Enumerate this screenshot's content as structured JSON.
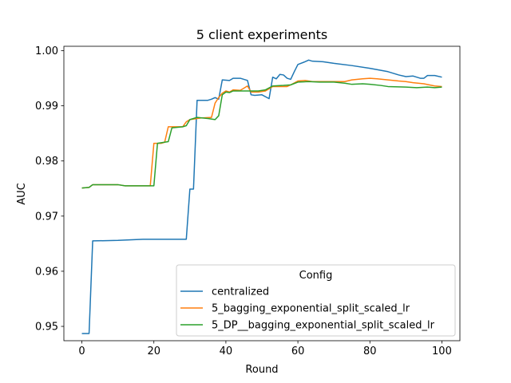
{
  "chart_data": {
    "type": "line",
    "title": "5 client experiments",
    "xlabel": "Round",
    "ylabel": "AUC",
    "xlim": [
      -5,
      105
    ],
    "ylim": [
      0.9474,
      1.0008
    ],
    "x_ticks": [
      0,
      20,
      40,
      60,
      80,
      100
    ],
    "y_ticks": [
      0.95,
      0.96,
      0.97,
      0.98,
      0.99,
      1.0
    ],
    "y_tick_labels": [
      "0.95",
      "0.96",
      "0.97",
      "0.98",
      "0.99",
      "1.00"
    ],
    "grid": false,
    "legend": {
      "title": "Config",
      "placement": "lower-right"
    },
    "series": [
      {
        "name": "centralized",
        "color": "#1f77b4",
        "points": [
          [
            0,
            0.9487
          ],
          [
            2,
            0.9487
          ],
          [
            3,
            0.9655
          ],
          [
            10,
            0.9656
          ],
          [
            17,
            0.9658
          ],
          [
            25,
            0.9658
          ],
          [
            29,
            0.9658
          ],
          [
            30,
            0.9749
          ],
          [
            31,
            0.9749
          ],
          [
            32,
            0.991
          ],
          [
            35,
            0.991
          ],
          [
            36,
            0.9912
          ],
          [
            37,
            0.9915
          ],
          [
            38,
            0.9912
          ],
          [
            39,
            0.9947
          ],
          [
            41,
            0.9946
          ],
          [
            42,
            0.995
          ],
          [
            44,
            0.995
          ],
          [
            46,
            0.9946
          ],
          [
            47,
            0.992
          ],
          [
            48,
            0.9919
          ],
          [
            50,
            0.992
          ],
          [
            52,
            0.9913
          ],
          [
            53,
            0.9952
          ],
          [
            54,
            0.9949
          ],
          [
            55,
            0.9957
          ],
          [
            56,
            0.9956
          ],
          [
            57,
            0.995
          ],
          [
            58,
            0.9948
          ],
          [
            59,
            0.9962
          ],
          [
            60,
            0.9975
          ],
          [
            62,
            0.998
          ],
          [
            63,
            0.9983
          ],
          [
            64,
            0.9981
          ],
          [
            67,
            0.998
          ],
          [
            70,
            0.9977
          ],
          [
            75,
            0.9973
          ],
          [
            80,
            0.9968
          ],
          [
            85,
            0.9962
          ],
          [
            88,
            0.9956
          ],
          [
            90,
            0.9953
          ],
          [
            92,
            0.9954
          ],
          [
            94,
            0.995
          ],
          [
            95,
            0.995
          ],
          [
            96,
            0.9955
          ],
          [
            98,
            0.9955
          ],
          [
            100,
            0.9952
          ]
        ]
      },
      {
        "name": "5_bagging_exponential_split_scaled_lr",
        "color": "#ff7f0e",
        "points": [
          [
            0,
            0.9751
          ],
          [
            2,
            0.9752
          ],
          [
            3,
            0.9757
          ],
          [
            10,
            0.9757
          ],
          [
            12,
            0.9755
          ],
          [
            19,
            0.9755
          ],
          [
            20,
            0.9832
          ],
          [
            22,
            0.9832
          ],
          [
            23,
            0.9834
          ],
          [
            24,
            0.9862
          ],
          [
            25,
            0.9862
          ],
          [
            26,
            0.9862
          ],
          [
            28,
            0.9862
          ],
          [
            29,
            0.9871
          ],
          [
            30,
            0.9875
          ],
          [
            33,
            0.9878
          ],
          [
            36,
            0.9879
          ],
          [
            37,
            0.9905
          ],
          [
            38,
            0.9915
          ],
          [
            39,
            0.9923
          ],
          [
            40,
            0.9927
          ],
          [
            41,
            0.9925
          ],
          [
            42,
            0.9929
          ],
          [
            44,
            0.9928
          ],
          [
            46,
            0.9936
          ],
          [
            47,
            0.9925
          ],
          [
            49,
            0.9925
          ],
          [
            51,
            0.9927
          ],
          [
            53,
            0.9935
          ],
          [
            57,
            0.9935
          ],
          [
            58,
            0.9938
          ],
          [
            60,
            0.9945
          ],
          [
            62,
            0.9946
          ],
          [
            64,
            0.9944
          ],
          [
            70,
            0.9944
          ],
          [
            73,
            0.9944
          ],
          [
            75,
            0.9947
          ],
          [
            78,
            0.9949
          ],
          [
            80,
            0.995
          ],
          [
            82,
            0.9949
          ],
          [
            85,
            0.9947
          ],
          [
            88,
            0.9945
          ],
          [
            90,
            0.9944
          ],
          [
            92,
            0.9942
          ],
          [
            95,
            0.994
          ],
          [
            98,
            0.9936
          ],
          [
            100,
            0.9935
          ]
        ]
      },
      {
        "name": "5_DP__bagging_exponential_split_scaled_lr",
        "color": "#2ca02c",
        "points": [
          [
            0,
            0.9751
          ],
          [
            2,
            0.9752
          ],
          [
            3,
            0.9757
          ],
          [
            10,
            0.9757
          ],
          [
            12,
            0.9755
          ],
          [
            19,
            0.9755
          ],
          [
            20,
            0.9755
          ],
          [
            21,
            0.9832
          ],
          [
            24,
            0.9835
          ],
          [
            25,
            0.986
          ],
          [
            28,
            0.9862
          ],
          [
            29,
            0.9864
          ],
          [
            30,
            0.9875
          ],
          [
            32,
            0.9879
          ],
          [
            35,
            0.9877
          ],
          [
            37,
            0.9875
          ],
          [
            38,
            0.9882
          ],
          [
            39,
            0.992
          ],
          [
            40,
            0.9925
          ],
          [
            41,
            0.9924
          ],
          [
            42,
            0.9927
          ],
          [
            45,
            0.9927
          ],
          [
            47,
            0.9927
          ],
          [
            49,
            0.9927
          ],
          [
            51,
            0.9929
          ],
          [
            53,
            0.9936
          ],
          [
            56,
            0.9937
          ],
          [
            58,
            0.9938
          ],
          [
            60,
            0.9943
          ],
          [
            63,
            0.9944
          ],
          [
            66,
            0.9943
          ],
          [
            70,
            0.9943
          ],
          [
            73,
            0.9941
          ],
          [
            75,
            0.9939
          ],
          [
            78,
            0.994
          ],
          [
            80,
            0.9939
          ],
          [
            83,
            0.9937
          ],
          [
            85,
            0.9935
          ],
          [
            90,
            0.9934
          ],
          [
            93,
            0.9933
          ],
          [
            96,
            0.9934
          ],
          [
            98,
            0.9933
          ],
          [
            100,
            0.9934
          ]
        ]
      }
    ]
  }
}
